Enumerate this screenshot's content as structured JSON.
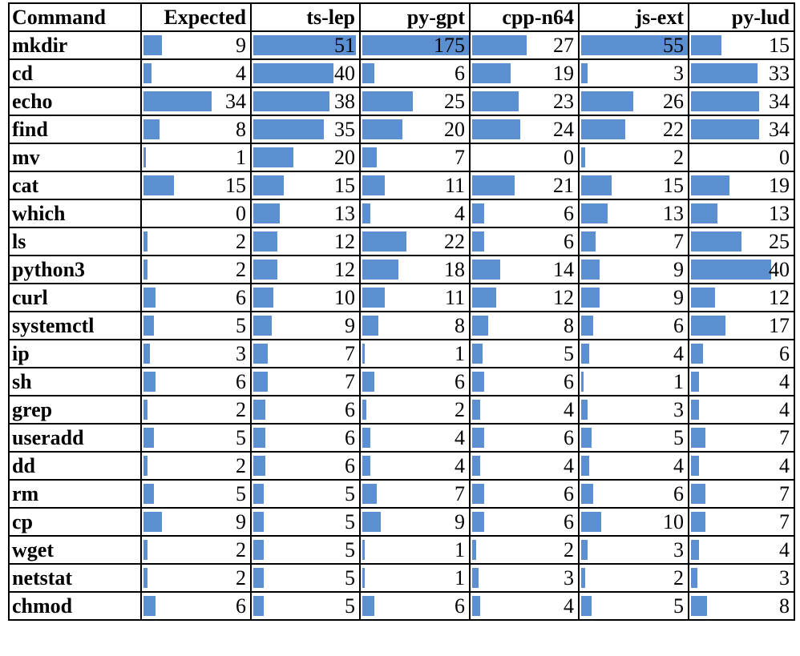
{
  "table": {
    "header": [
      "Command",
      "Expected",
      "ts-lep",
      "py-gpt",
      "cpp-n64",
      "js-ext",
      "py-lud"
    ],
    "rows": [
      [
        "mkdir",
        9,
        51,
        175,
        27,
        55,
        15
      ],
      [
        "cd",
        4,
        40,
        6,
        19,
        3,
        33
      ],
      [
        "echo",
        34,
        38,
        25,
        23,
        26,
        34
      ],
      [
        "find",
        8,
        35,
        20,
        24,
        22,
        34
      ],
      [
        "mv",
        1,
        20,
        7,
        0,
        2,
        0
      ],
      [
        "cat",
        15,
        15,
        11,
        21,
        15,
        19
      ],
      [
        "which",
        0,
        13,
        4,
        6,
        13,
        13
      ],
      [
        "ls",
        2,
        12,
        22,
        6,
        7,
        25
      ],
      [
        "python3",
        2,
        12,
        18,
        14,
        9,
        40
      ],
      [
        "curl",
        6,
        10,
        11,
        12,
        9,
        12
      ],
      [
        "systemctl",
        5,
        9,
        8,
        8,
        6,
        17
      ],
      [
        "ip",
        3,
        7,
        1,
        5,
        4,
        6
      ],
      [
        "sh",
        6,
        7,
        6,
        6,
        1,
        4
      ],
      [
        "grep",
        2,
        6,
        2,
        4,
        3,
        4
      ],
      [
        "useradd",
        5,
        6,
        4,
        6,
        5,
        7
      ],
      [
        "dd",
        2,
        6,
        4,
        4,
        4,
        4
      ],
      [
        "rm",
        5,
        5,
        7,
        6,
        6,
        7
      ],
      [
        "cp",
        9,
        5,
        9,
        6,
        10,
        7
      ],
      [
        "wget",
        2,
        5,
        1,
        2,
        3,
        4
      ],
      [
        "netstat",
        2,
        5,
        1,
        3,
        2,
        3
      ],
      [
        "chmod",
        6,
        5,
        6,
        4,
        5,
        8
      ]
    ]
  }
}
